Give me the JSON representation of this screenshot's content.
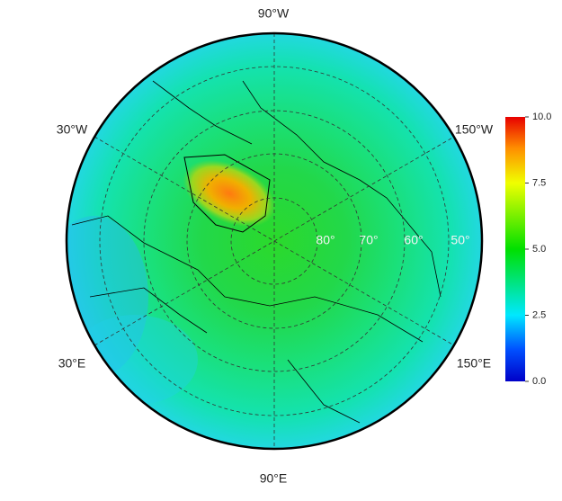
{
  "map": {
    "longitude_labels": [
      "90°W",
      "30°W",
      "150°W",
      "30°E",
      "150°E",
      "90°E"
    ],
    "latitude_labels": [
      "80°",
      "70°",
      "60°",
      "50°"
    ],
    "colorbar": {
      "range": [
        0,
        10
      ],
      "ticks": [
        {
          "value": 0,
          "label": "0.0"
        },
        {
          "value": 2.5,
          "label": "2.5"
        },
        {
          "value": 5,
          "label": "5.0"
        },
        {
          "value": 7.5,
          "label": "7.5"
        },
        {
          "value": 10,
          "label": "10.0"
        }
      ]
    }
  }
}
